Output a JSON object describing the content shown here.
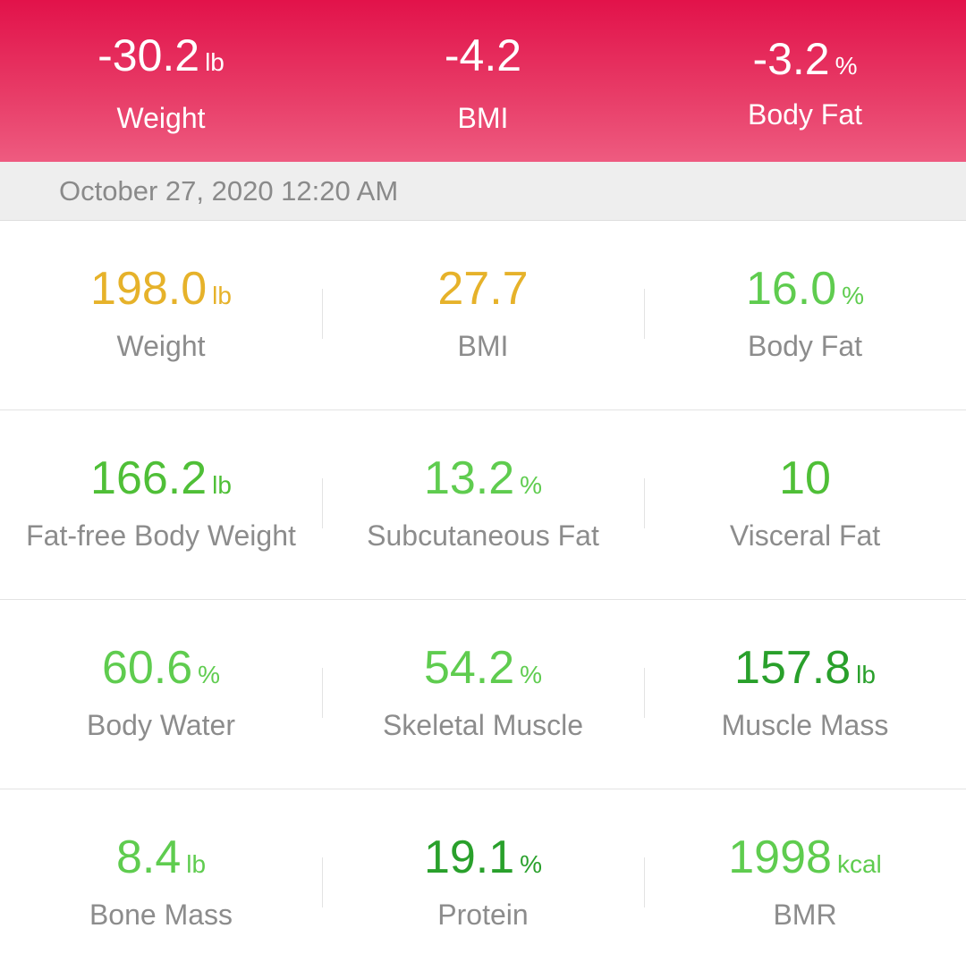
{
  "summary": [
    {
      "value": "-30.2",
      "unit": "lb",
      "label": "Weight"
    },
    {
      "value": "-4.2",
      "unit": "",
      "label": "BMI"
    },
    {
      "value": "-3.2",
      "unit": "%",
      "label": "Body Fat"
    }
  ],
  "date": "October 27, 2020 12:20 AM",
  "colors": {
    "header_top": "#e2124a",
    "header_bottom": "#ee5b80",
    "amber": "#e6b22a",
    "light_green": "#5fcc4f",
    "green": "#4fbf37",
    "dark_green": "#29a02b",
    "label_gray": "#8c8c8c"
  },
  "metrics": [
    [
      {
        "value": "198.0",
        "unit": "lb",
        "label": "Weight",
        "color": "#e6b22a"
      },
      {
        "value": "27.7",
        "unit": "",
        "label": "BMI",
        "color": "#e6b22a"
      },
      {
        "value": "16.0",
        "unit": "%",
        "label": "Body Fat",
        "color": "#5fcc4f"
      }
    ],
    [
      {
        "value": "166.2",
        "unit": "lb",
        "label": "Fat-free Body Weight",
        "color": "#4fbf37"
      },
      {
        "value": "13.2",
        "unit": "%",
        "label": "Subcutaneous Fat",
        "color": "#5fcc4f"
      },
      {
        "value": "10",
        "unit": "",
        "label": "Visceral Fat",
        "color": "#4fbf37"
      }
    ],
    [
      {
        "value": "60.6",
        "unit": "%",
        "label": "Body Water",
        "color": "#5fcc4f"
      },
      {
        "value": "54.2",
        "unit": "%",
        "label": "Skeletal Muscle",
        "color": "#5fcc4f"
      },
      {
        "value": "157.8",
        "unit": "lb",
        "label": "Muscle Mass",
        "color": "#29a02b"
      }
    ],
    [
      {
        "value": "8.4",
        "unit": "lb",
        "label": "Bone Mass",
        "color": "#5fcc4f"
      },
      {
        "value": "19.1",
        "unit": "%",
        "label": "Protein",
        "color": "#29a02b"
      },
      {
        "value": "1998",
        "unit": "kcal",
        "label": "BMR",
        "color": "#5fcc4f"
      }
    ]
  ]
}
